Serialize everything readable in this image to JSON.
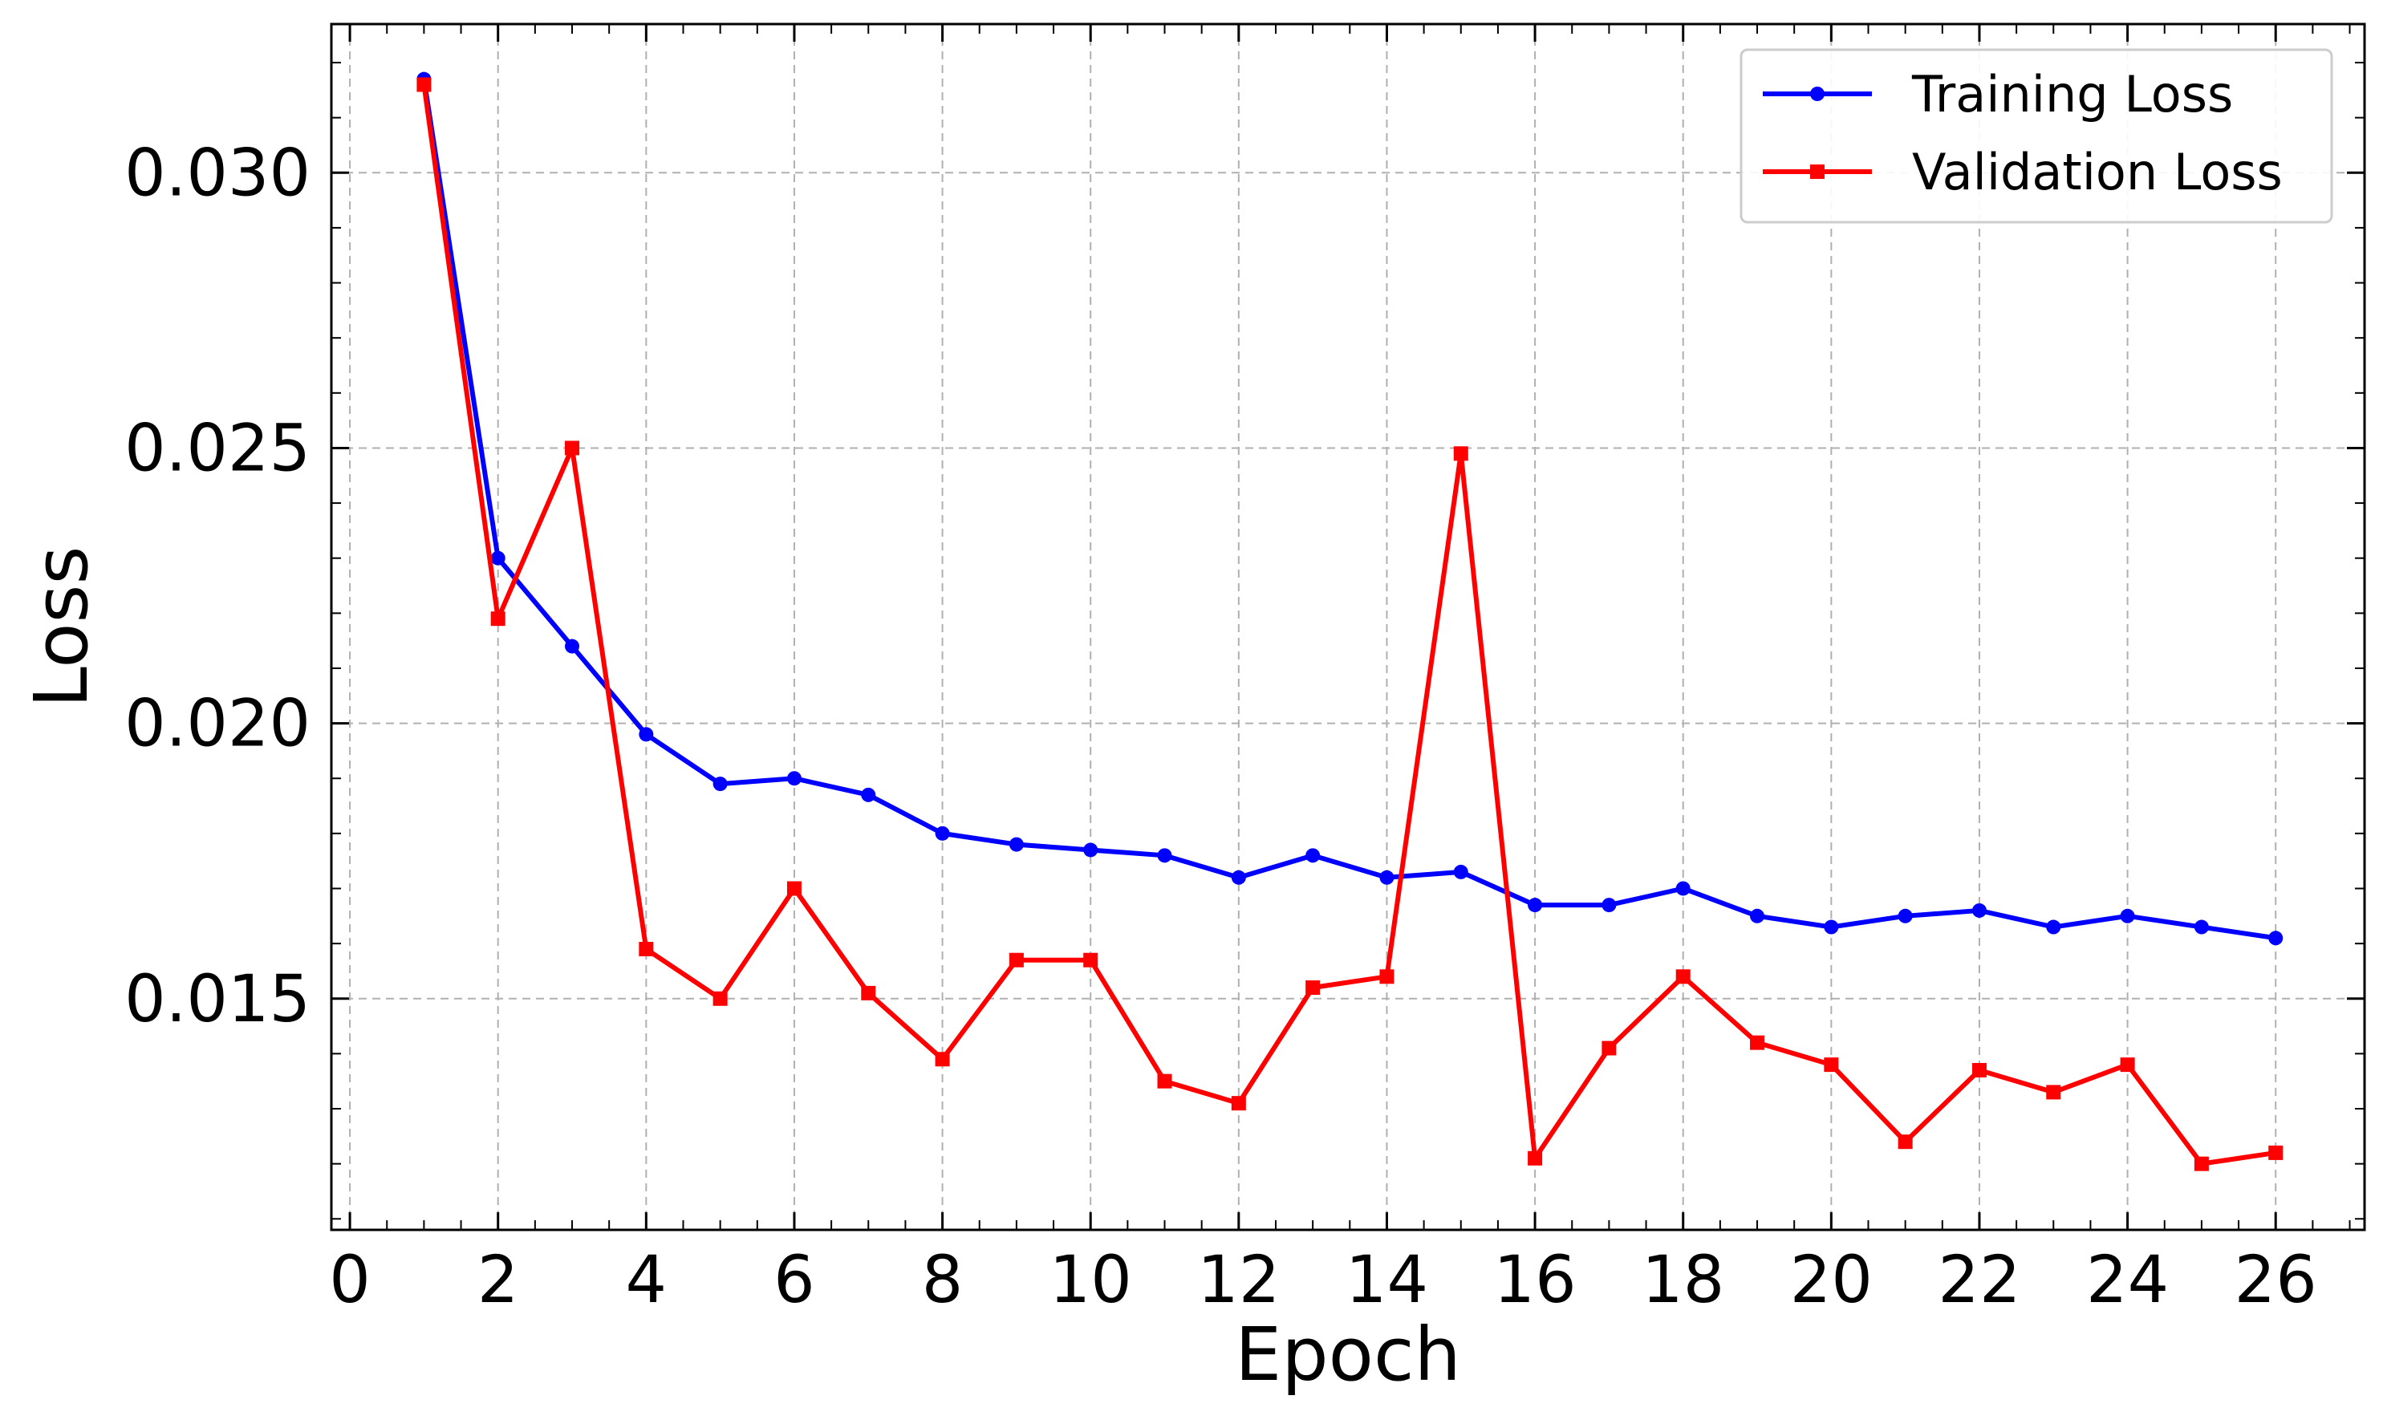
{
  "chart_data": {
    "type": "line",
    "title": "",
    "xlabel": "Epoch",
    "ylabel": "Loss",
    "xlim": [
      -0.25,
      27.2
    ],
    "ylim": [
      0.0108,
      0.0327
    ],
    "x_ticks": [
      0,
      2,
      4,
      6,
      8,
      10,
      12,
      14,
      16,
      18,
      20,
      22,
      24,
      26
    ],
    "x_tick_labels": [
      "0",
      "2",
      "4",
      "6",
      "8",
      "10",
      "12",
      "14",
      "16",
      "18",
      "20",
      "22",
      "24",
      "26"
    ],
    "y_ticks": [
      0.015,
      0.02,
      0.025,
      0.03
    ],
    "y_tick_labels": [
      "0.015",
      "0.020",
      "0.025",
      "0.030"
    ],
    "grid": true,
    "legend_position": "top-right",
    "x": [
      1,
      2,
      3,
      4,
      5,
      6,
      7,
      8,
      9,
      10,
      11,
      12,
      13,
      14,
      15,
      16,
      17,
      18,
      19,
      20,
      21,
      22,
      23,
      24,
      25,
      26
    ],
    "series": [
      {
        "name": "Training Loss",
        "color": "#0000ff",
        "marker": "circle",
        "values": [
          0.0317,
          0.023,
          0.0214,
          0.0198,
          0.0189,
          0.019,
          0.0187,
          0.018,
          0.0178,
          0.0177,
          0.0176,
          0.0172,
          0.0176,
          0.0172,
          0.0173,
          0.0167,
          0.0167,
          0.017,
          0.0165,
          0.0163,
          0.0165,
          0.0166,
          0.0163,
          0.0165,
          0.0163,
          0.0161
        ]
      },
      {
        "name": "Validation Loss",
        "color": "#ff0000",
        "marker": "square",
        "values": [
          0.0316,
          0.0219,
          0.025,
          0.0159,
          0.015,
          0.017,
          0.0151,
          0.0139,
          0.0157,
          0.0157,
          0.0135,
          0.0131,
          0.0152,
          0.0154,
          0.0249,
          0.0121,
          0.0141,
          0.0154,
          0.0142,
          0.0138,
          0.0124,
          0.0137,
          0.0133,
          0.0138,
          0.012,
          0.0122
        ]
      }
    ]
  }
}
